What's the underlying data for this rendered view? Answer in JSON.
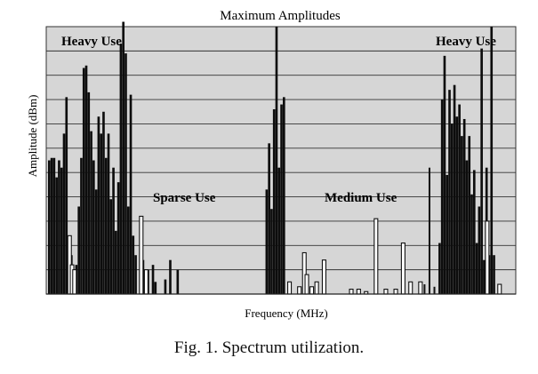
{
  "chart_data": {
    "type": "bar",
    "title": "Maximum Amplitudes",
    "xlabel": "Frequency (MHz)",
    "ylabel": "Amplitude (dBm)",
    "ylim": [
      0,
      11
    ],
    "grid": true,
    "annotations": [
      "Heavy Use",
      "Sparse Use",
      "Medium Use",
      "Heavy Use"
    ],
    "filled_peaks": [
      {
        "i": 0,
        "v": 5.5
      },
      {
        "i": 1,
        "v": 5.6
      },
      {
        "i": 2,
        "v": 5.6
      },
      {
        "i": 3,
        "v": 4.8
      },
      {
        "i": 4,
        "v": 5.5
      },
      {
        "i": 5,
        "v": 5.2
      },
      {
        "i": 6,
        "v": 6.6
      },
      {
        "i": 7,
        "v": 8.1
      },
      {
        "i": 8,
        "v": 2.4
      },
      {
        "i": 9,
        "v": 1.6
      },
      {
        "i": 10,
        "v": 1.0
      },
      {
        "i": 11,
        "v": 1.2
      },
      {
        "i": 12,
        "v": 3.6
      },
      {
        "i": 13,
        "v": 5.6
      },
      {
        "i": 14,
        "v": 9.3
      },
      {
        "i": 15,
        "v": 9.4
      },
      {
        "i": 16,
        "v": 8.3
      },
      {
        "i": 17,
        "v": 6.7
      },
      {
        "i": 18,
        "v": 5.5
      },
      {
        "i": 19,
        "v": 4.3
      },
      {
        "i": 20,
        "v": 7.3
      },
      {
        "i": 21,
        "v": 6.6
      },
      {
        "i": 22,
        "v": 7.5
      },
      {
        "i": 23,
        "v": 5.6
      },
      {
        "i": 24,
        "v": 6.6
      },
      {
        "i": 25,
        "v": 3.9
      },
      {
        "i": 26,
        "v": 5.2
      },
      {
        "i": 27,
        "v": 2.6
      },
      {
        "i": 28,
        "v": 4.6
      },
      {
        "i": 29,
        "v": 10.3
      },
      {
        "i": 30,
        "v": 11.2
      },
      {
        "i": 31,
        "v": 9.9
      },
      {
        "i": 32,
        "v": 3.6
      },
      {
        "i": 33,
        "v": 8.2
      },
      {
        "i": 34,
        "v": 2.4
      },
      {
        "i": 35,
        "v": 1.6
      },
      {
        "i": 38,
        "v": 1.4
      },
      {
        "i": 40,
        "v": 1.0
      },
      {
        "i": 42,
        "v": 1.2
      },
      {
        "i": 43,
        "v": 0.5
      },
      {
        "i": 47,
        "v": 0.6
      },
      {
        "i": 49,
        "v": 1.4
      },
      {
        "i": 52,
        "v": 1.0
      },
      {
        "i": 88,
        "v": 4.3
      },
      {
        "i": 89,
        "v": 6.2
      },
      {
        "i": 90,
        "v": 3.5
      },
      {
        "i": 91,
        "v": 7.6
      },
      {
        "i": 92,
        "v": 11.0
      },
      {
        "i": 93,
        "v": 5.2
      },
      {
        "i": 94,
        "v": 7.8
      },
      {
        "i": 95,
        "v": 8.1
      },
      {
        "i": 158,
        "v": 2.1
      },
      {
        "i": 159,
        "v": 8.0
      },
      {
        "i": 160,
        "v": 9.8
      },
      {
        "i": 161,
        "v": 4.9
      },
      {
        "i": 162,
        "v": 8.4
      },
      {
        "i": 163,
        "v": 7.0
      },
      {
        "i": 164,
        "v": 8.6
      },
      {
        "i": 165,
        "v": 7.3
      },
      {
        "i": 166,
        "v": 7.8
      },
      {
        "i": 167,
        "v": 6.5
      },
      {
        "i": 168,
        "v": 7.2
      },
      {
        "i": 169,
        "v": 5.5
      },
      {
        "i": 170,
        "v": 6.5
      },
      {
        "i": 171,
        "v": 4.1
      },
      {
        "i": 172,
        "v": 5.1
      },
      {
        "i": 173,
        "v": 2.1
      },
      {
        "i": 174,
        "v": 3.6
      },
      {
        "i": 175,
        "v": 10.1
      },
      {
        "i": 176,
        "v": 1.4
      },
      {
        "i": 177,
        "v": 5.2
      },
      {
        "i": 178,
        "v": 1.6
      },
      {
        "i": 179,
        "v": 11.0
      },
      {
        "i": 180,
        "v": 1.6
      }
    ],
    "outline_bars": [
      {
        "i": 8,
        "v": 2.4
      },
      {
        "i": 9,
        "v": 1.2
      },
      {
        "i": 10,
        "v": 1.0
      },
      {
        "i": 37,
        "v": 3.2
      },
      {
        "i": 39,
        "v": 1.0
      },
      {
        "i": 97,
        "v": 0.5
      },
      {
        "i": 101,
        "v": 0.3
      },
      {
        "i": 103,
        "v": 1.7
      },
      {
        "i": 104,
        "v": 0.8
      },
      {
        "i": 106,
        "v": 0.3
      },
      {
        "i": 108,
        "v": 0.5
      },
      {
        "i": 111,
        "v": 1.4
      },
      {
        "i": 122,
        "v": 0.2
      },
      {
        "i": 125,
        "v": 0.2
      },
      {
        "i": 128,
        "v": 0.1
      },
      {
        "i": 132,
        "v": 3.1
      },
      {
        "i": 136,
        "v": 0.2
      },
      {
        "i": 140,
        "v": 0.2
      },
      {
        "i": 143,
        "v": 2.1
      },
      {
        "i": 146,
        "v": 0.5
      },
      {
        "i": 150,
        "v": 0.5
      },
      {
        "i": 177,
        "v": 3.0
      },
      {
        "i": 182,
        "v": 0.4
      }
    ],
    "dark_bars": [
      {
        "i": 154,
        "v": 5.2
      },
      {
        "i": 156,
        "v": 0.3
      },
      {
        "i": 152,
        "v": 0.4
      },
      {
        "i": 182,
        "v": 0.4
      }
    ]
  },
  "caption": "Fig. 1.  Spectrum utilization."
}
